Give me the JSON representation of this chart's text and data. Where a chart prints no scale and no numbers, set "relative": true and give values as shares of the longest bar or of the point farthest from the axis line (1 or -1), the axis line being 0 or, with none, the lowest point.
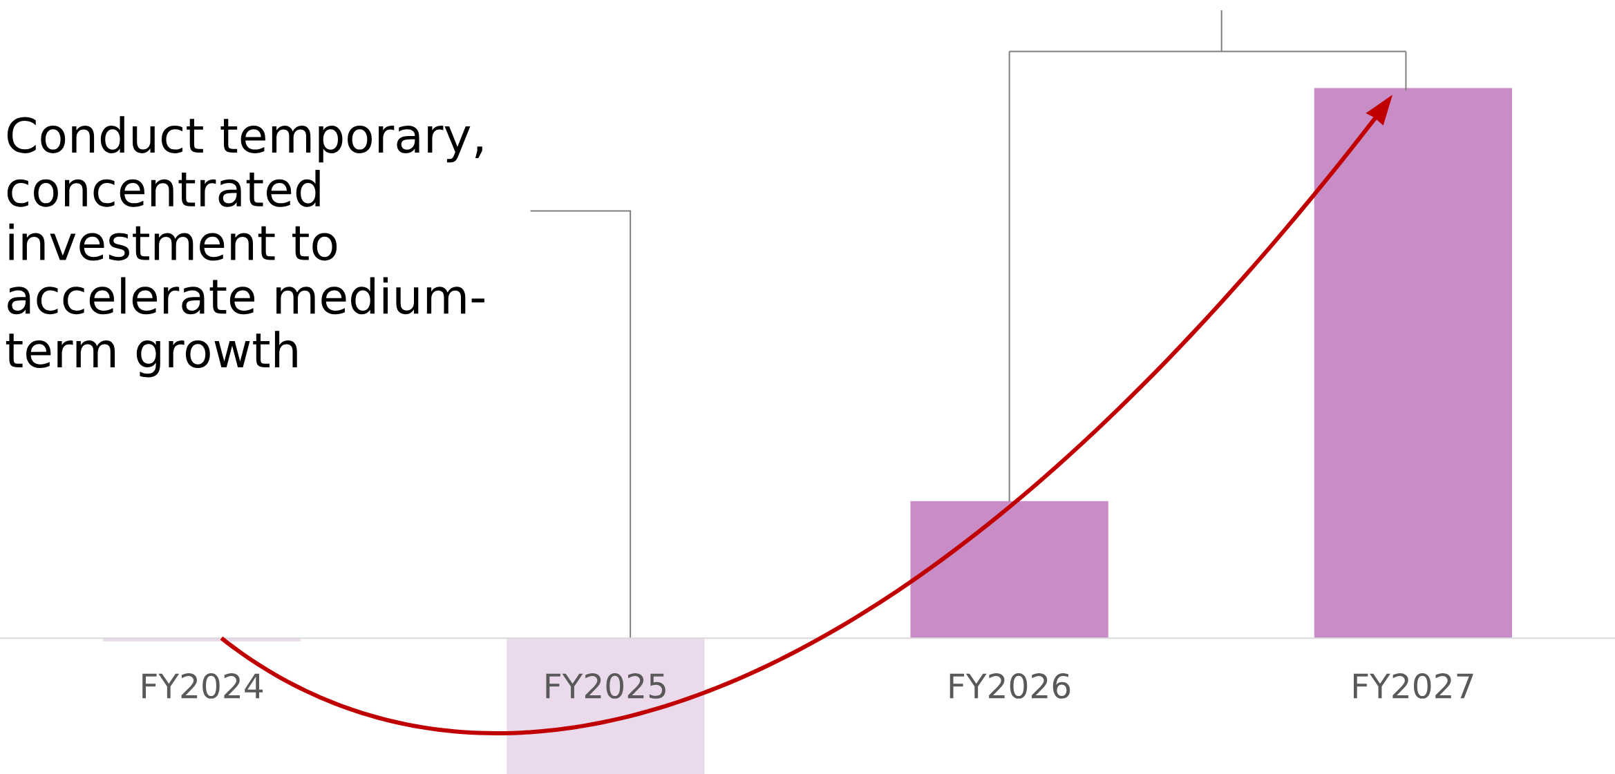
{
  "chart_data": {
    "type": "bar",
    "relative": true,
    "categories": [
      "FY2024",
      "FY2025",
      "FY2026",
      "FY2027"
    ],
    "values": [
      -0.006,
      -0.247,
      0.249,
      1
    ],
    "colors": [
      "#ebd9ec",
      "#ebd9ec",
      "#c88dc6",
      "#c88dc6"
    ],
    "annotations": [
      "Conduct temporary,\nconcentrated\ninvestment to\naccelerate medium-\nterm growth"
    ],
    "grid": false,
    "legend": false
  }
}
